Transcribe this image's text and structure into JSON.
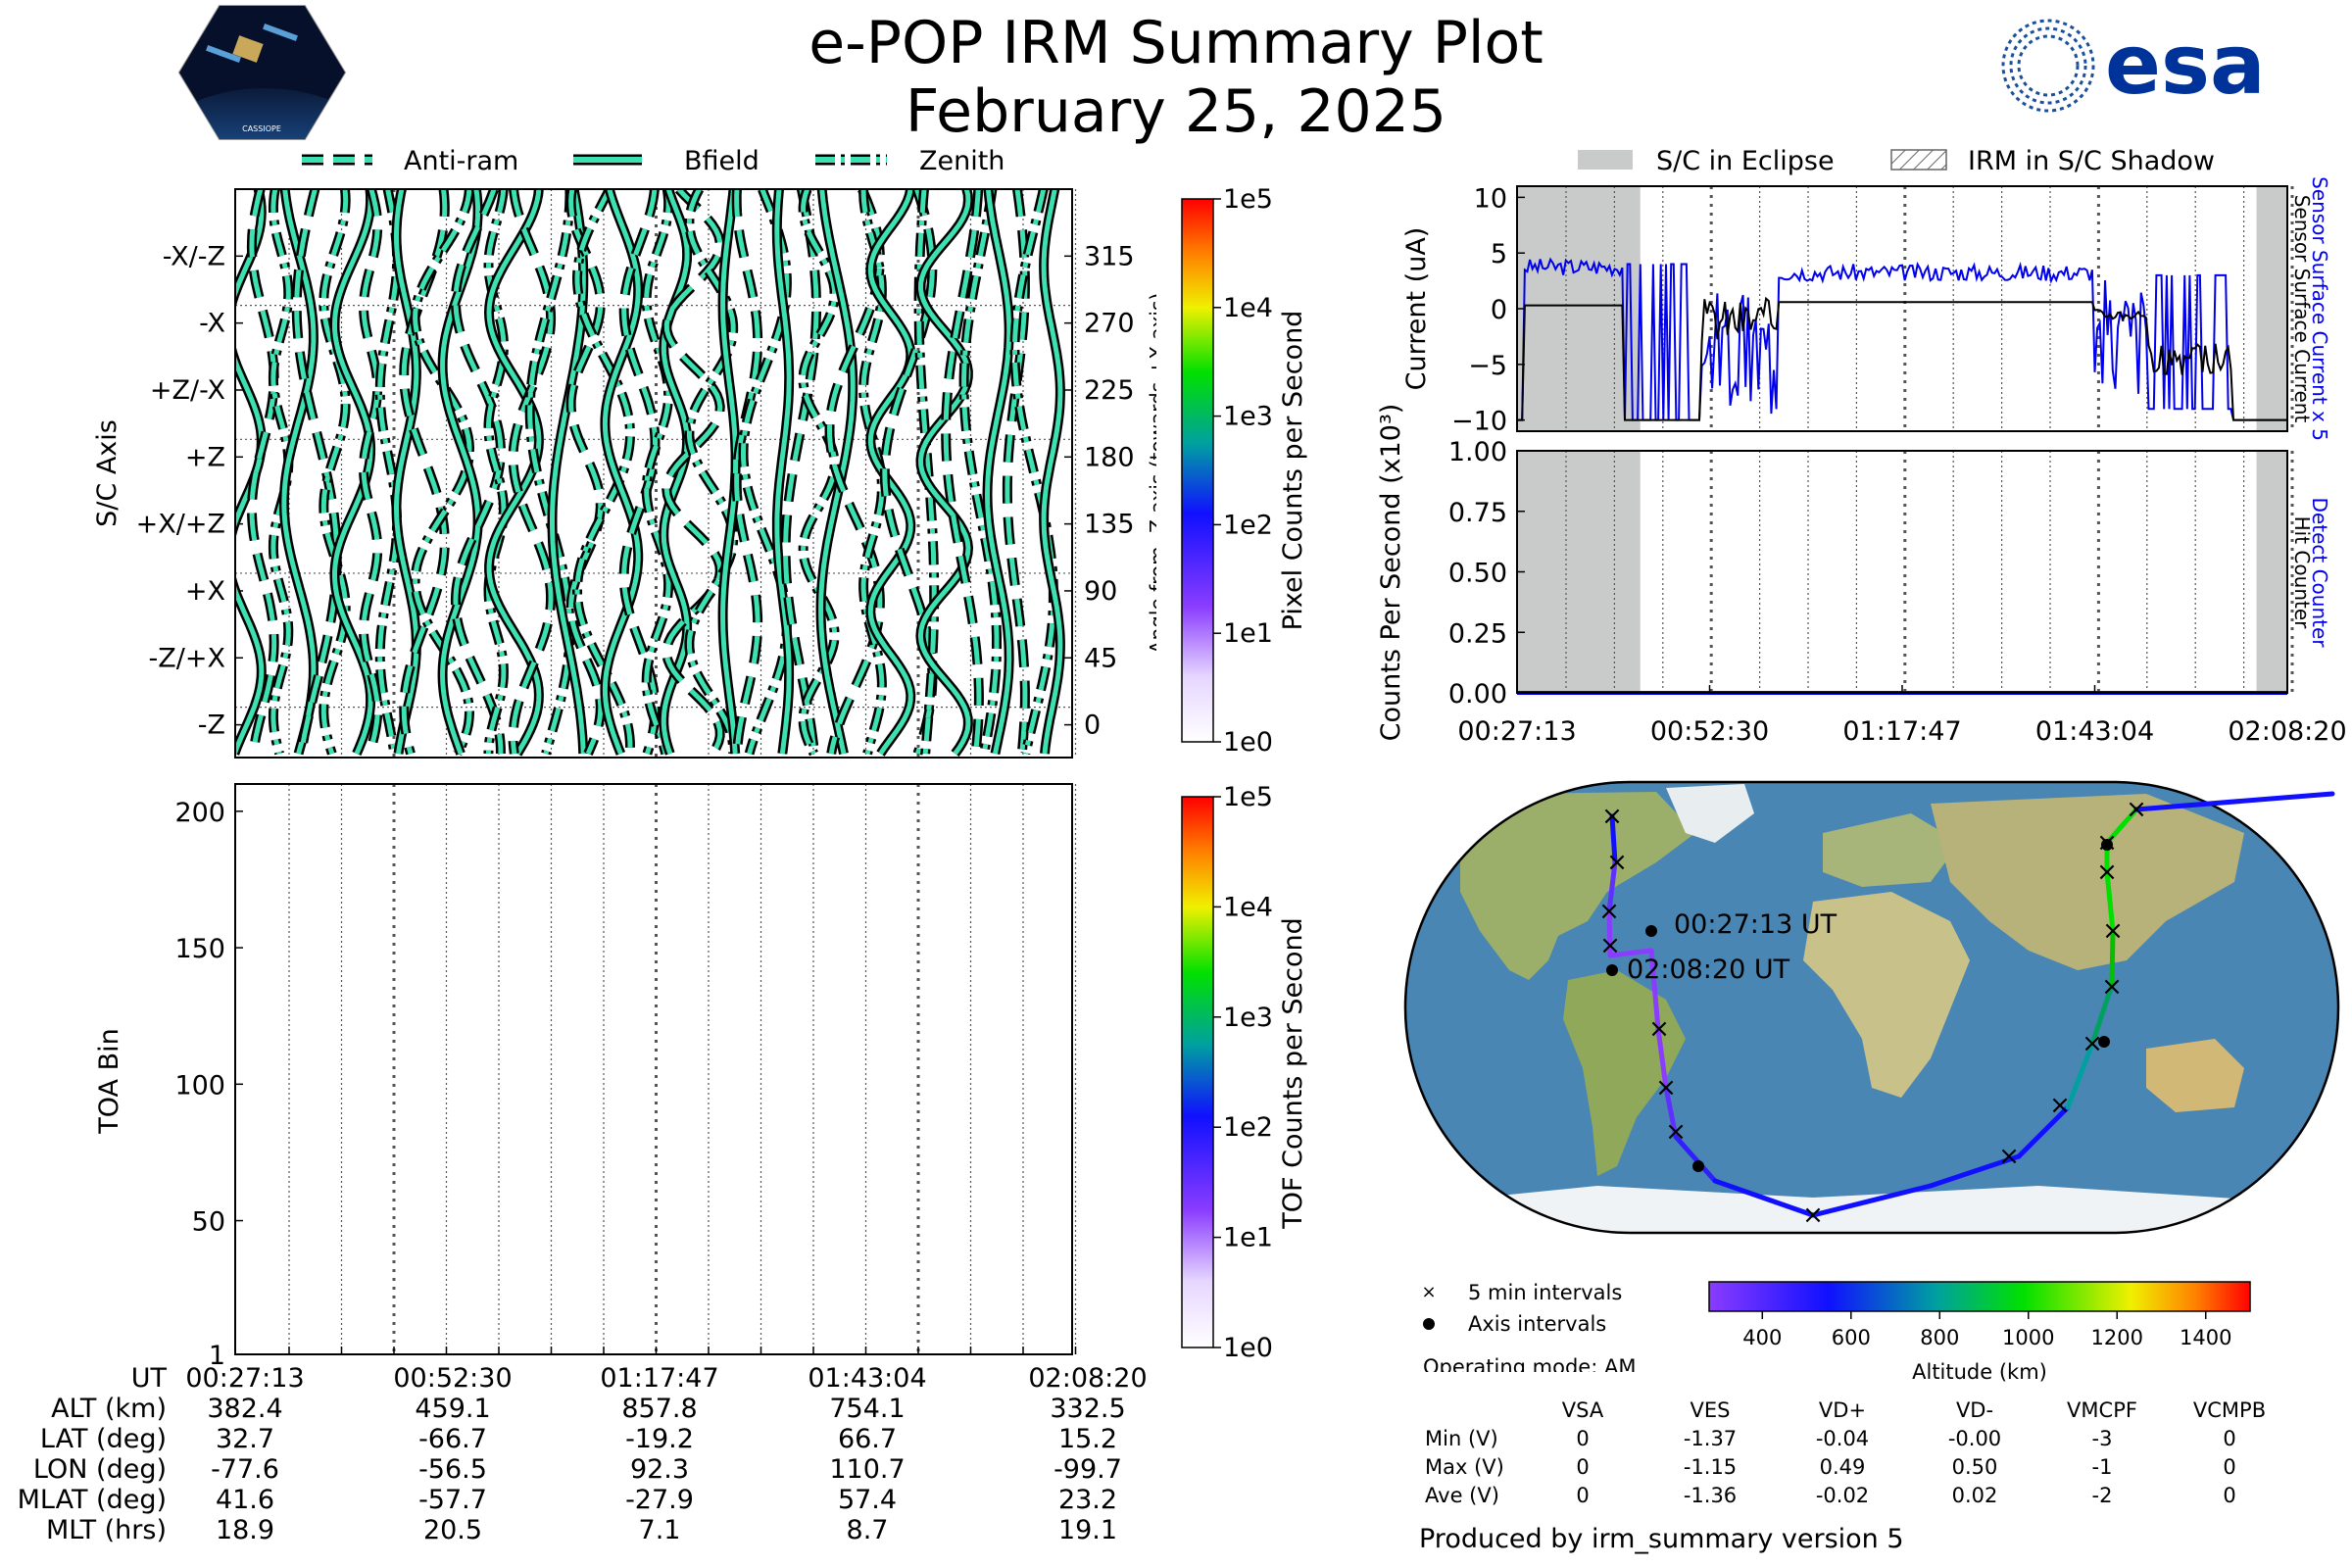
{
  "header": {
    "title": "e-POP IRM Summary Plot",
    "date": "February 25, 2025",
    "left_logo_text": "CASSIOPE",
    "right_logo_text": "esa"
  },
  "colors": {
    "trace_fill": "#3de0b0",
    "eclipse": "#c8cbc9",
    "blue": "#0000ee",
    "black": "#000000"
  },
  "legend_top": {
    "items": [
      {
        "label": "Anti-ram",
        "style": "dashed"
      },
      {
        "label": "Bfield",
        "style": "solid"
      },
      {
        "label": "Zenith",
        "style": "dashdot"
      }
    ]
  },
  "chart_data": [
    {
      "id": "orientation",
      "type": "line",
      "ylabel": "S/C Axis",
      "y_tick_labels": [
        "-X/-Z",
        "-X",
        "+Z/-X",
        "+Z",
        "+X/+Z",
        "+X",
        "-Z/+X",
        "-Z"
      ],
      "y2label": "Angle from -Z axis (towards +X axis)",
      "y2_tick_labels": [
        "315",
        "270",
        "225",
        "180",
        "135",
        "90",
        "45",
        "0"
      ],
      "ylim": [
        0,
        360
      ],
      "series": [
        {
          "name": "Anti-ram",
          "style": "dashed"
        },
        {
          "name": "Bfield",
          "style": "solid"
        },
        {
          "name": "Zenith",
          "style": "dashdot"
        }
      ],
      "colorbar": {
        "label": "Pixel Counts per Second",
        "ticks": [
          "1e5",
          "1e4",
          "1e3",
          "1e2",
          "1e1",
          "1e0"
        ]
      }
    },
    {
      "id": "toa",
      "type": "heatmap",
      "ylabel": "TOA Bin",
      "y_tick_labels": [
        "200",
        "150",
        "100",
        "50",
        "1"
      ],
      "ylim": [
        1,
        210
      ],
      "x_tick_labels": [
        "00:27:13",
        "00:52:30",
        "01:17:47",
        "01:43:04",
        "02:08:20"
      ],
      "colorbar": {
        "label": "TOF Counts per Second",
        "ticks": [
          "1e5",
          "1e4",
          "1e3",
          "1e2",
          "1e1",
          "1e0"
        ]
      }
    },
    {
      "id": "current",
      "type": "line",
      "ylabel": "Current (uA)",
      "ylim": [
        -11,
        11
      ],
      "y_tick_labels": [
        "10",
        "5",
        "0",
        "−5",
        "−10"
      ],
      "right_labels": {
        "blue": "Sensor Surface Current x 5",
        "black": "Sensor Surface Current"
      },
      "eclipse_ranges_fraction": [
        [
          0,
          0.16
        ],
        [
          0.96,
          1.0
        ]
      ],
      "series": [
        {
          "name": "Sensor Surface Current x 5",
          "color": "blue"
        },
        {
          "name": "Sensor Surface Current",
          "color": "black"
        }
      ]
    },
    {
      "id": "counts",
      "type": "line",
      "ylabel": "Counts Per Second (x10³)",
      "ylim": [
        0,
        1
      ],
      "y_tick_labels": [
        "1.00",
        "0.75",
        "0.50",
        "0.25",
        "0.00"
      ],
      "x_tick_labels": [
        "00:27:13",
        "00:52:30",
        "01:17:47",
        "01:43:04",
        "02:08:20"
      ],
      "right_labels": {
        "blue": "Detect Counter",
        "black": "Hit Counter"
      },
      "series": [
        {
          "name": "Detect Counter",
          "values_constant": 0
        }
      ]
    }
  ],
  "legend_right": {
    "eclipse": "S/C in Eclipse",
    "shadow": "IRM in S/C Shadow"
  },
  "ut_table": {
    "row_labels": [
      "UT",
      "ALT (km)",
      "LAT (deg)",
      "LON (deg)",
      "MLAT (deg)",
      "MLT (hrs)"
    ],
    "columns": [
      [
        "00:27:13",
        "382.4",
        "32.7",
        "-77.6",
        "41.6",
        "18.9"
      ],
      [
        "00:52:30",
        "459.1",
        "-66.7",
        "-56.5",
        "-57.7",
        "20.5"
      ],
      [
        "01:17:47",
        "857.8",
        "-19.2",
        "92.3",
        "-27.9",
        "7.1"
      ],
      [
        "01:43:04",
        "754.1",
        "66.7",
        "110.7",
        "57.4",
        "8.7"
      ],
      [
        "02:08:20",
        "332.5",
        "15.2",
        "-99.7",
        "23.2",
        "19.1"
      ]
    ]
  },
  "map": {
    "start_label": "00:27:13 UT",
    "end_label": "02:08:20 UT",
    "legend_x": "5 min intervals",
    "legend_dot": "Axis intervals",
    "altitude_label": "Altitude (km)",
    "altitude_ticks": [
      "400",
      "600",
      "800",
      "1000",
      "1200",
      "1400"
    ],
    "operating_mode": "Operating mode: AM"
  },
  "voltage_table": {
    "headers": [
      "VSA",
      "VES",
      "VD+",
      "VD-",
      "VMCPF",
      "VCMPB"
    ],
    "rows": [
      {
        "label": "Min (V)",
        "values": [
          "0",
          "-1.37",
          "-0.04",
          "-0.00",
          "-3",
          "0"
        ]
      },
      {
        "label": "Max (V)",
        "values": [
          "0",
          "-1.15",
          "0.49",
          "0.50",
          "-1",
          "0"
        ]
      },
      {
        "label": "Ave (V)",
        "values": [
          "0",
          "-1.36",
          "-0.02",
          "0.02",
          "-2",
          "0"
        ]
      }
    ]
  },
  "footer": "Produced by irm_summary version 5"
}
